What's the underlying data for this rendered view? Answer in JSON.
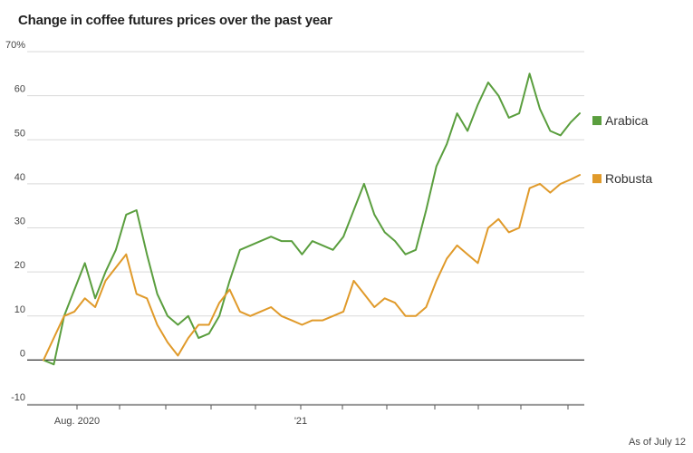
{
  "title": "Change in coffee futures prices over the past year",
  "footnote": "As of July 12",
  "colors": {
    "Arabica": "#5a9e3e",
    "Robusta": "#e09a2a",
    "grid": "#d9d9d9",
    "zero": "#333333"
  },
  "chart_data": {
    "type": "line",
    "title": "Change in coffee futures prices over the past year",
    "xlabel": "",
    "ylabel": "",
    "ylim": [
      -10,
      70
    ],
    "y_ticks": [
      -10,
      0,
      10,
      20,
      30,
      40,
      50,
      60,
      70
    ],
    "y_tick_labels": [
      "-10",
      "0",
      "10",
      "20",
      "30",
      "40",
      "50",
      "60",
      "70%"
    ],
    "x_ticks": [
      "Aug. 2020",
      "",
      "",
      "",
      "",
      "'21",
      "",
      "",
      "",
      "",
      ""
    ],
    "legend": "right",
    "grid": true,
    "x": [
      "2020-07-14",
      "2020-07-21",
      "2020-07-28",
      "2020-08-04",
      "2020-08-11",
      "2020-08-18",
      "2020-08-25",
      "2020-09-01",
      "2020-09-08",
      "2020-09-15",
      "2020-09-22",
      "2020-09-29",
      "2020-10-06",
      "2020-10-13",
      "2020-10-20",
      "2020-10-27",
      "2020-11-03",
      "2020-11-10",
      "2020-11-17",
      "2020-11-24",
      "2020-12-01",
      "2020-12-08",
      "2020-12-15",
      "2020-12-22",
      "2020-12-29",
      "2021-01-05",
      "2021-01-12",
      "2021-01-19",
      "2021-01-26",
      "2021-02-02",
      "2021-02-09",
      "2021-02-16",
      "2021-02-23",
      "2021-03-02",
      "2021-03-09",
      "2021-03-16",
      "2021-03-23",
      "2021-03-30",
      "2021-04-06",
      "2021-04-13",
      "2021-04-20",
      "2021-04-27",
      "2021-05-04",
      "2021-05-11",
      "2021-05-18",
      "2021-05-25",
      "2021-06-01",
      "2021-06-08",
      "2021-06-15",
      "2021-06-22",
      "2021-06-29",
      "2021-07-06",
      "2021-07-12"
    ],
    "series": [
      {
        "name": "Arabica",
        "values": [
          0,
          -1,
          10,
          16,
          22,
          14,
          20,
          25,
          33,
          34,
          24,
          15,
          10,
          8,
          10,
          5,
          6,
          10,
          18,
          25,
          26,
          27,
          28,
          27,
          27,
          24,
          27,
          26,
          25,
          28,
          34,
          40,
          33,
          29,
          27,
          24,
          25,
          34,
          44,
          49,
          56,
          52,
          58,
          63,
          60,
          55,
          56,
          65,
          57,
          52,
          51,
          54,
          56
        ]
      },
      {
        "name": "Robusta",
        "values": [
          0,
          5,
          10,
          11,
          14,
          12,
          18,
          21,
          24,
          15,
          14,
          8,
          4,
          1,
          5,
          8,
          8,
          13,
          16,
          11,
          10,
          11,
          12,
          10,
          9,
          8,
          9,
          9,
          10,
          11,
          18,
          15,
          12,
          14,
          13,
          10,
          10,
          12,
          18,
          23,
          26,
          24,
          22,
          30,
          32,
          29,
          30,
          39,
          40,
          38,
          40,
          41,
          42
        ]
      }
    ]
  }
}
